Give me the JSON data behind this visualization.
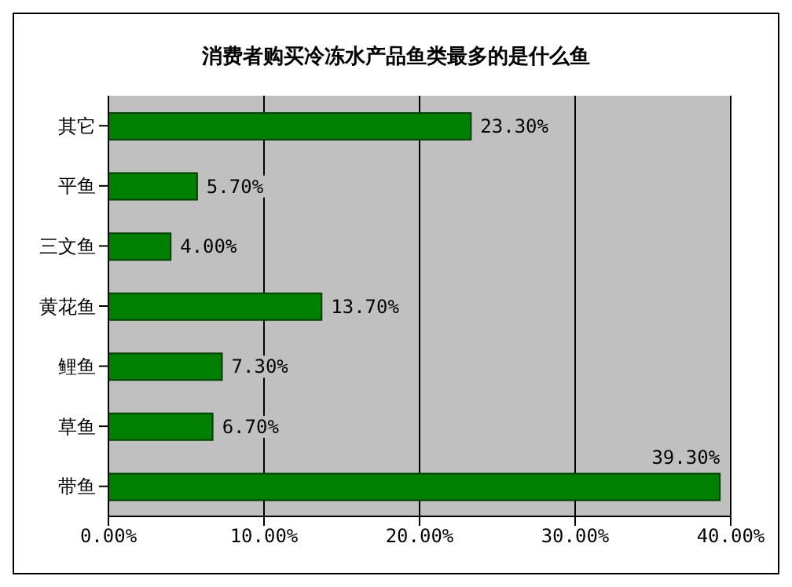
{
  "chart_data": {
    "type": "bar",
    "orientation": "horizontal",
    "title": "消费者购买冷冻水产品鱼类最多的是什么鱼",
    "categories": [
      "其它",
      "平鱼",
      "三文鱼",
      "黄花鱼",
      "鲤鱼",
      "草鱼",
      "带鱼"
    ],
    "values": [
      23.3,
      5.7,
      4.0,
      13.7,
      7.3,
      6.7,
      39.3
    ],
    "value_labels": [
      "23.30%",
      "5.70%",
      "4.00%",
      "13.70%",
      "7.30%",
      "6.70%",
      "39.30%"
    ],
    "color": "#008000",
    "xlim": [
      0,
      40
    ],
    "xticks": [
      {
        "value": 0,
        "label": "0.00%"
      },
      {
        "value": 10,
        "label": "10.00%"
      },
      {
        "value": 20,
        "label": "20.00%"
      },
      {
        "value": 30,
        "label": "30.00%"
      },
      {
        "value": 40,
        "label": "40.00%"
      }
    ],
    "grid": "x",
    "legend": false
  }
}
